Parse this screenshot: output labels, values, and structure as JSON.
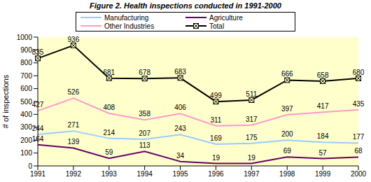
{
  "chart_data": {
    "type": "line",
    "title": "Figure 2. Health inspections conducted in 1991-2000",
    "y_label": "# of inspections",
    "categories": [
      "1991",
      "1992",
      "1993",
      "1994",
      "1995",
      "1996",
      "1997",
      "1998",
      "1999",
      "2000"
    ],
    "series": [
      {
        "name": "Manufacturing",
        "color": "#99ccff",
        "marker": "none",
        "values": [
          244,
          271,
          214,
          207,
          243,
          169,
          175,
          200,
          184,
          177
        ]
      },
      {
        "name": "Agriculture",
        "color": "#660066",
        "marker": "none",
        "values": [
          164,
          139,
          59,
          113,
          34,
          19,
          19,
          69,
          57,
          68
        ]
      },
      {
        "name": "Other Industries",
        "color": "#ff99cc",
        "marker": "none",
        "values": [
          427,
          526,
          408,
          358,
          406,
          311,
          317,
          397,
          417,
          435
        ]
      },
      {
        "name": "Total",
        "color": "#000000",
        "marker": "square",
        "values": [
          835,
          936,
          681,
          678,
          683,
          499,
          511,
          666,
          658,
          680
        ]
      }
    ],
    "ylim": [
      0,
      1000
    ],
    "yticks": [
      0,
      100,
      200,
      300,
      400,
      500,
      600,
      700,
      800,
      900,
      1000
    ],
    "grid": false,
    "data_labels": true,
    "legend": "top"
  }
}
